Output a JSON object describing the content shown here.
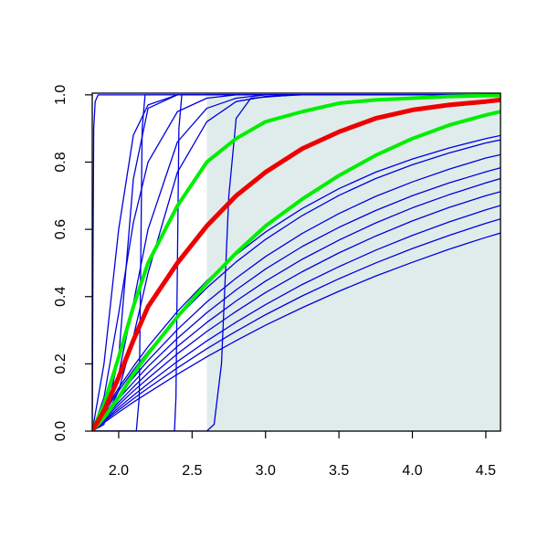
{
  "chart_data": {
    "type": "line",
    "x": [
      1.82,
      1.9,
      2.0,
      2.1,
      2.2,
      2.4,
      2.6,
      2.8,
      3.0,
      3.25,
      3.5,
      3.75,
      4.0,
      4.25,
      4.5,
      4.6
    ],
    "xlim": [
      1.82,
      4.6
    ],
    "ylim": [
      0,
      1.005
    ],
    "xticks": [
      {
        "value": 2,
        "label": "2.0"
      },
      2.5,
      {
        "value": 3,
        "label": "3.0"
      },
      3.5,
      {
        "value": 4,
        "label": "4.0"
      },
      4.5
    ],
    "yticks": [
      {
        "value": 0,
        "label": "0.0"
      },
      0.2,
      0.4,
      0.6,
      0.8,
      {
        "value": 1,
        "label": "1.0"
      }
    ],
    "shaded_region": {
      "xlim": [
        2.6,
        4.6
      ],
      "ylim": [
        0,
        1.005
      ],
      "color": "#e0ecec"
    },
    "series": [
      {
        "color": "#0000dd",
        "width": 1.3,
        "values": [
          0,
          0.025,
          0.056,
          0.086,
          0.114,
          0.169,
          0.221,
          0.269,
          0.315,
          0.367,
          0.416,
          0.461,
          0.502,
          0.541,
          0.576,
          0.589
        ]
      },
      {
        "color": "#0000dd",
        "width": 1.3,
        "values": [
          0,
          0.029,
          0.063,
          0.096,
          0.128,
          0.188,
          0.245,
          0.297,
          0.346,
          0.402,
          0.453,
          0.5,
          0.543,
          0.582,
          0.618,
          0.631
        ]
      },
      {
        "color": "#0000dd",
        "width": 1.3,
        "values": [
          0,
          0.032,
          0.07,
          0.106,
          0.141,
          0.207,
          0.268,
          0.324,
          0.376,
          0.436,
          0.489,
          0.538,
          0.582,
          0.622,
          0.658,
          0.671
        ]
      },
      {
        "color": "#0000dd",
        "width": 1.3,
        "values": [
          0,
          0.036,
          0.078,
          0.119,
          0.157,
          0.23,
          0.296,
          0.356,
          0.412,
          0.474,
          0.53,
          0.58,
          0.625,
          0.665,
          0.7,
          0.712
        ]
      },
      {
        "color": "#0000dd",
        "width": 1.3,
        "values": [
          0,
          0.039,
          0.086,
          0.131,
          0.173,
          0.252,
          0.323,
          0.387,
          0.446,
          0.511,
          0.568,
          0.619,
          0.664,
          0.703,
          0.738,
          0.751
        ]
      },
      {
        "color": "#0000dd",
        "width": 1.3,
        "values": [
          0,
          0.044,
          0.096,
          0.145,
          0.192,
          0.276,
          0.352,
          0.42,
          0.482,
          0.549,
          0.606,
          0.656,
          0.7,
          0.738,
          0.771,
          0.783
        ]
      },
      {
        "color": "#0000dd",
        "width": 1.3,
        "values": [
          0,
          0.049,
          0.106,
          0.159,
          0.21,
          0.302,
          0.384,
          0.455,
          0.519,
          0.588,
          0.647,
          0.698,
          0.741,
          0.779,
          0.812,
          0.822
        ]
      },
      {
        "color": "#0000dd",
        "width": 1.3,
        "values": [
          0,
          0.059,
          0.128,
          0.192,
          0.251,
          0.356,
          0.447,
          0.525,
          0.592,
          0.662,
          0.721,
          0.77,
          0.809,
          0.842,
          0.87,
          0.879
        ]
      },
      {
        "color": "#0000dd",
        "width": 1.3,
        "values": [
          0,
          0.055,
          0.12,
          0.181,
          0.237,
          0.338,
          0.426,
          0.503,
          0.57,
          0.641,
          0.701,
          0.751,
          0.792,
          0.827,
          0.857,
          0.866
        ]
      },
      {
        "color": "#0000dd",
        "width": 1.3,
        "values": [
          0,
          0.05,
          0.17,
          0.38,
          0.6,
          0.86,
          0.96,
          0.99,
          1,
          1,
          1,
          1,
          1,
          1,
          1,
          1
        ]
      },
      {
        "color": "#0000dd",
        "width": 1.3,
        "values": [
          0,
          0.1,
          0.35,
          0.62,
          0.8,
          0.95,
          0.99,
          1,
          1,
          1,
          1,
          1,
          1,
          1,
          1,
          1
        ]
      },
      {
        "color": "#0000dd",
        "width": 1.3,
        "values": [
          0,
          0.03,
          0.12,
          0.28,
          0.47,
          0.77,
          0.92,
          0.98,
          0.995,
          1,
          1,
          1,
          1,
          1,
          1,
          1
        ]
      },
      {
        "color": "#0000dd",
        "width": 1.3,
        "values": [
          0,
          0.2,
          0.6,
          0.88,
          0.97,
          1,
          1,
          1,
          1,
          1,
          1,
          1,
          1,
          1,
          1,
          1
        ]
      },
      {
        "color": "#0000dd",
        "width": 1.3,
        "values": [
          0,
          0.02,
          0.22,
          0.75,
          0.96,
          1,
          1,
          1,
          1,
          1,
          1,
          1,
          1,
          1,
          1,
          1
        ]
      },
      {
        "color": "#0000dd",
        "width": 1.3,
        "x": [
          1.82,
          1.825,
          1.83,
          1.84,
          1.86,
          4.6
        ],
        "values": [
          0,
          0.5,
          0.9,
          0.98,
          1,
          1
        ]
      },
      {
        "color": "#0000dd",
        "width": 1.3,
        "x": [
          1.82,
          2.12,
          2.14,
          2.15,
          2.16,
          2.18,
          4.6
        ],
        "values": [
          0,
          0,
          0.1,
          0.5,
          0.9,
          1,
          1
        ]
      },
      {
        "color": "#0000dd",
        "width": 1.3,
        "x": [
          1.82,
          2.38,
          2.39,
          2.4,
          2.41,
          2.43,
          4.6
        ],
        "values": [
          0,
          0,
          0.1,
          0.5,
          0.9,
          1,
          1
        ]
      },
      {
        "color": "#0000dd",
        "width": 1.3,
        "x": [
          1.82,
          2.6,
          2.65,
          2.7,
          2.75,
          2.8,
          2.9,
          3.2,
          4.6
        ],
        "values": [
          0,
          0,
          0.02,
          0.2,
          0.7,
          0.93,
          0.99,
          1,
          1
        ]
      },
      {
        "color": "#00ee00",
        "width": 4,
        "values": [
          0,
          0.04,
          0.1,
          0.17,
          0.23,
          0.34,
          0.44,
          0.53,
          0.61,
          0.69,
          0.76,
          0.82,
          0.87,
          0.91,
          0.94,
          0.95
        ]
      },
      {
        "color": "#00ee00",
        "width": 4,
        "values": [
          0,
          0.08,
          0.22,
          0.37,
          0.5,
          0.67,
          0.8,
          0.87,
          0.92,
          0.95,
          0.975,
          0.985,
          0.99,
          0.995,
          0.998,
          0.998
        ]
      },
      {
        "color": "#ee0000",
        "width": 5,
        "values": [
          0,
          0.06,
          0.16,
          0.27,
          0.37,
          0.5,
          0.61,
          0.7,
          0.77,
          0.84,
          0.89,
          0.93,
          0.955,
          0.97,
          0.98,
          0.985
        ]
      }
    ]
  }
}
